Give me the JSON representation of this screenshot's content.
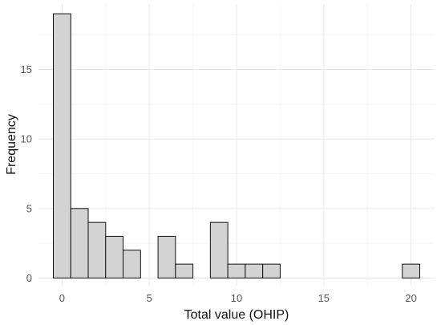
{
  "chart_data": {
    "type": "bar",
    "subtype": "histogram",
    "title": "",
    "xlabel": "Total value (OHIP)",
    "ylabel": "Frequency",
    "bin_width": 1,
    "bins": [
      {
        "x": 0,
        "count": 19
      },
      {
        "x": 1,
        "count": 5
      },
      {
        "x": 2,
        "count": 4
      },
      {
        "x": 3,
        "count": 3
      },
      {
        "x": 4,
        "count": 2
      },
      {
        "x": 5,
        "count": 0
      },
      {
        "x": 6,
        "count": 3
      },
      {
        "x": 7,
        "count": 1
      },
      {
        "x": 8,
        "count": 0
      },
      {
        "x": 9,
        "count": 4
      },
      {
        "x": 10,
        "count": 1
      },
      {
        "x": 11,
        "count": 1
      },
      {
        "x": 12,
        "count": 1
      },
      {
        "x": 13,
        "count": 0
      },
      {
        "x": 14,
        "count": 0
      },
      {
        "x": 15,
        "count": 0
      },
      {
        "x": 16,
        "count": 0
      },
      {
        "x": 17,
        "count": 0
      },
      {
        "x": 18,
        "count": 0
      },
      {
        "x": 19,
        "count": 0
      },
      {
        "x": 20,
        "count": 1
      }
    ],
    "xlim": [
      -0.5,
      20.5
    ],
    "ylim": [
      0,
      19
    ],
    "x_ticks": [
      0,
      5,
      10,
      15,
      20
    ],
    "y_ticks": [
      0,
      5,
      10,
      15
    ],
    "grid": true,
    "bar_fill": "#d3d3d3",
    "bar_stroke": "#111111",
    "legend": "none"
  }
}
